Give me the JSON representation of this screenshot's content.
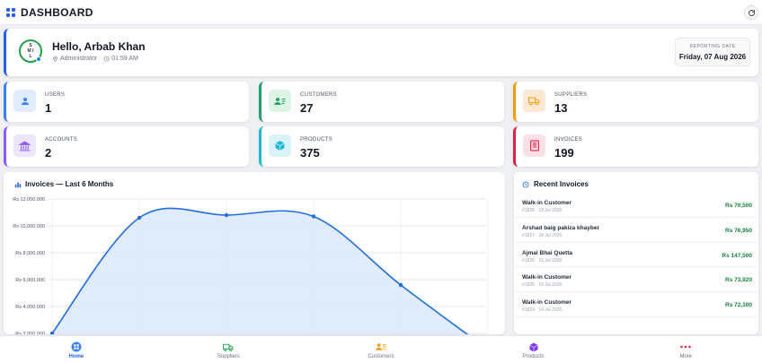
{
  "header": {
    "title": "DASHBOARD"
  },
  "welcome": {
    "logo_letters": [
      "S",
      "M I",
      "L"
    ],
    "greeting": "Hello, Arbab Khan",
    "role": "Administrator",
    "time": "01:59 AM",
    "reporting_label": "REPORTING DATE",
    "reporting_date": "Friday, 07 Aug 2026"
  },
  "stats": [
    {
      "label": "USERS",
      "value": "1",
      "color": "#3b82f6",
      "bg": "#e0ecfd",
      "icon": "user-icon"
    },
    {
      "label": "CUSTOMERS",
      "value": "27",
      "color": "#22a06b",
      "bg": "#dcf5e7",
      "icon": "customers-icon"
    },
    {
      "label": "SUPPLIERS",
      "value": "13",
      "color": "#f59e0b",
      "bg": "#fde8d4",
      "icon": "truck-icon"
    },
    {
      "label": "ACCOUNTS",
      "value": "2",
      "color": "#8b5cf6",
      "bg": "#ece5fb",
      "icon": "bank-icon"
    },
    {
      "label": "PRODUCTS",
      "value": "375",
      "color": "#22b8d6",
      "bg": "#d8f3fa",
      "icon": "box-icon"
    },
    {
      "label": "INVOICES",
      "value": "199",
      "color": "#e11d48",
      "bg": "#fbe1e6",
      "icon": "invoice-icon"
    }
  ],
  "chart": {
    "title": "Invoices — Last 6 Months"
  },
  "chart_data": {
    "type": "area",
    "title": "Invoices — Last 6 Months",
    "xlabel": "",
    "ylabel": "",
    "y_ticks": [
      "Rs 12,000,000",
      "Rs 10,000,000",
      "Rs 8,000,000",
      "Rs 6,000,000",
      "Rs 4,000,000",
      "Rs 2,000,000"
    ],
    "ylim": [
      0,
      12000000
    ],
    "series": [
      {
        "values": [
          2000000,
          10600000,
          10800000,
          10700000,
          5600000,
          800000
        ]
      }
    ],
    "grid": true,
    "color": "#1f6fe0"
  },
  "recent": {
    "title": "Recent Invoices",
    "items": [
      {
        "name": "Walk-in Customer",
        "sub": "#1828 · 18 Jul 2026",
        "amount": "Rs 70,500"
      },
      {
        "name": "Arshad baig pakiza khayber",
        "sub": "#1827 · 18 Jul 2026",
        "amount": "Rs 76,950"
      },
      {
        "name": "Ajmal Bhai Quetta",
        "sub": "#1826 · 15 Jul 2026",
        "amount": "Rs 147,500"
      },
      {
        "name": "Walk-in Customer",
        "sub": "#1825 · 15 Jul 2026",
        "amount": "Rs 73,920"
      },
      {
        "name": "Walk-in Customer",
        "sub": "#1824 · 14 Jul 2026",
        "amount": "Rs 72,100"
      }
    ]
  },
  "nav": [
    {
      "label": "Home",
      "icon": "home-icon",
      "active": true
    },
    {
      "label": "Suppliers",
      "icon": "truck-icon"
    },
    {
      "label": "Customers",
      "icon": "customers-icon"
    },
    {
      "label": "Products",
      "icon": "box-icon"
    },
    {
      "label": "More",
      "icon": "more-icon"
    }
  ]
}
